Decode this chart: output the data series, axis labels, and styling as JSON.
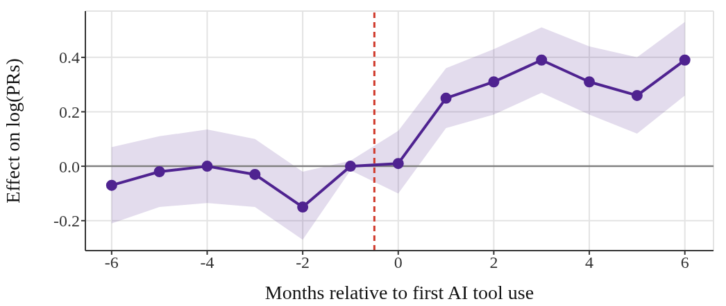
{
  "chart_data": {
    "type": "line",
    "xlabel": "Months relative to first AI tool use",
    "ylabel": "Effect on log(PRs)",
    "x": [
      -6,
      -5,
      -4,
      -3,
      -2,
      -1,
      0,
      1,
      2,
      3,
      4,
      5,
      6
    ],
    "series": [
      {
        "color": "#4f2390",
        "values": [
          -0.07,
          -0.02,
          0.0,
          -0.03,
          -0.15,
          0.0,
          0.01,
          0.25,
          0.31,
          0.39,
          0.31,
          0.26,
          0.39
        ],
        "lower": [
          -0.21,
          -0.15,
          -0.135,
          -0.15,
          -0.27,
          -0.015,
          -0.1,
          0.14,
          0.19,
          0.27,
          0.19,
          0.12,
          0.26
        ],
        "upper": [
          0.07,
          0.11,
          0.135,
          0.1,
          -0.02,
          0.02,
          0.13,
          0.36,
          0.43,
          0.51,
          0.44,
          0.4,
          0.53
        ]
      }
    ],
    "xlim": [
      -6.55,
      6.6
    ],
    "xticks": [
      -6,
      -4,
      -2,
      0,
      2,
      4,
      6
    ],
    "ylim": [
      -0.31,
      0.57
    ],
    "yticks": [
      -0.2,
      {
        "value": 0,
        "label": "0.0"
      },
      0.2,
      0.4
    ],
    "grid": true,
    "legend": false,
    "marker": "circle",
    "line_style": "solid",
    "ref_lines": [
      {
        "axis": "y",
        "value": 0,
        "color": "#808080",
        "line_style": "solid"
      },
      {
        "axis": "x",
        "value": -0.5,
        "color": "#d03a2c",
        "line_style": "dashed"
      }
    ]
  }
}
